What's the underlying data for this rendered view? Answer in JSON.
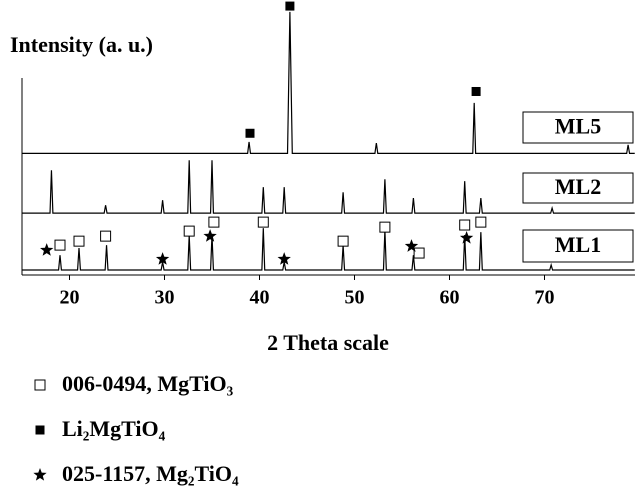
{
  "chart_data": {
    "type": "line",
    "y_label": "Intensity (a. u.)",
    "x_label": "2 Theta scale",
    "xlim": [
      15,
      79.5
    ],
    "xticks": [
      20,
      30,
      40,
      50,
      60,
      70
    ],
    "ylim": [
      0,
      104
    ],
    "series": [
      {
        "name": "ML1",
        "color": "#000000",
        "x": [
          15,
          18.85,
          19,
          19.15,
          20.85,
          21,
          21.15,
          23.75,
          23.9,
          24.05,
          29.65,
          29.8,
          29.95,
          32.45,
          32.6,
          32.75,
          34.85,
          35,
          35.15,
          40.25,
          40.4,
          40.55,
          42.45,
          42.6,
          42.75,
          48.65,
          48.8,
          48.95,
          53.05,
          53.2,
          53.35,
          56.05,
          56.2,
          56.35,
          61.45,
          61.6,
          61.75,
          63.15,
          63.3,
          63.45,
          70.55,
          70.7,
          70.85,
          79.5
        ],
        "values": [
          1.9,
          1.9,
          7.5,
          1.9,
          1.9,
          10.2,
          1.9,
          1.9,
          11.3,
          1.9,
          1.9,
          4.9,
          1.9,
          1.9,
          15.1,
          1.9,
          1.9,
          15.1,
          1.9,
          1.9,
          17.7,
          1.9,
          1.9,
          4.9,
          1.9,
          1.9,
          11.3,
          1.9,
          1.9,
          17.0,
          1.9,
          1.9,
          7.5,
          1.9,
          1.9,
          15.1,
          1.9,
          1.9,
          16.2,
          1.9,
          1.9,
          3.8,
          1.9,
          1.9
        ]
      },
      {
        "name": "ML2",
        "color": "#000000",
        "x": [
          15,
          17.95,
          18.1,
          18.25,
          23.65,
          23.8,
          23.95,
          29.65,
          29.8,
          29.95,
          32.45,
          32.6,
          32.75,
          34.85,
          35,
          35.15,
          40.25,
          40.4,
          40.55,
          42.45,
          42.6,
          42.75,
          48.65,
          48.8,
          48.95,
          53.05,
          53.2,
          53.35,
          56.05,
          56.2,
          56.35,
          61.45,
          61.6,
          61.75,
          63.15,
          63.3,
          63.45,
          70.65,
          70.8,
          70.95,
          79.5
        ],
        "values": [
          23.4,
          23.4,
          39.6,
          23.4,
          23.4,
          26.4,
          23.4,
          23.4,
          28.3,
          23.4,
          23.4,
          43.4,
          23.4,
          23.4,
          43.4,
          23.4,
          23.4,
          33.2,
          23.4,
          23.4,
          33.2,
          23.4,
          23.4,
          31.3,
          23.4,
          23.4,
          36.2,
          23.4,
          23.4,
          29.1,
          23.4,
          23.4,
          35.5,
          23.4,
          23.4,
          29.1,
          23.4,
          23.4,
          25.3,
          23.4,
          23.4
        ]
      },
      {
        "name": "ML5",
        "color": "#000000",
        "x": [
          15,
          38.75,
          38.9,
          39.05,
          42.95,
          43.2,
          43.45,
          52.15,
          52.3,
          52.45,
          62.45,
          62.6,
          62.75,
          78.65,
          78.8,
          78.95,
          79.5
        ],
        "values": [
          46.0,
          46.0,
          50.3,
          46.0,
          46.0,
          99.5,
          46.0,
          46.0,
          49.9,
          46.0,
          46.0,
          65.1,
          46.0,
          46.0,
          49.2,
          46.0,
          46.0
        ]
      }
    ],
    "reference_patterns": [
      {
        "name": "006-0494, MgTiO₃",
        "symbol": "open-square",
        "x": [
          19,
          21,
          23.8,
          32.6,
          35.2,
          40.4,
          48.8,
          53.2,
          56.8,
          61.6,
          63.3
        ],
        "y": [
          11.3,
          12.8,
          14.7,
          16.6,
          20.0,
          20.0,
          12.8,
          18.1,
          8.3,
          18.9,
          20.0
        ]
      },
      {
        "name": "Li₂MgTiO₄",
        "symbol": "filled-square",
        "x": [
          39.0,
          43.2,
          62.8
        ],
        "y": [
          53.6,
          101.7,
          69.4
        ]
      },
      {
        "name": "025-1157, Mg₂TiO₄",
        "symbol": "star",
        "x": [
          17.6,
          29.8,
          34.8,
          42.6,
          56.0,
          61.8
        ],
        "y": [
          9.4,
          6.0,
          14.7,
          6.0,
          10.9,
          14.0
        ]
      }
    ]
  }
}
